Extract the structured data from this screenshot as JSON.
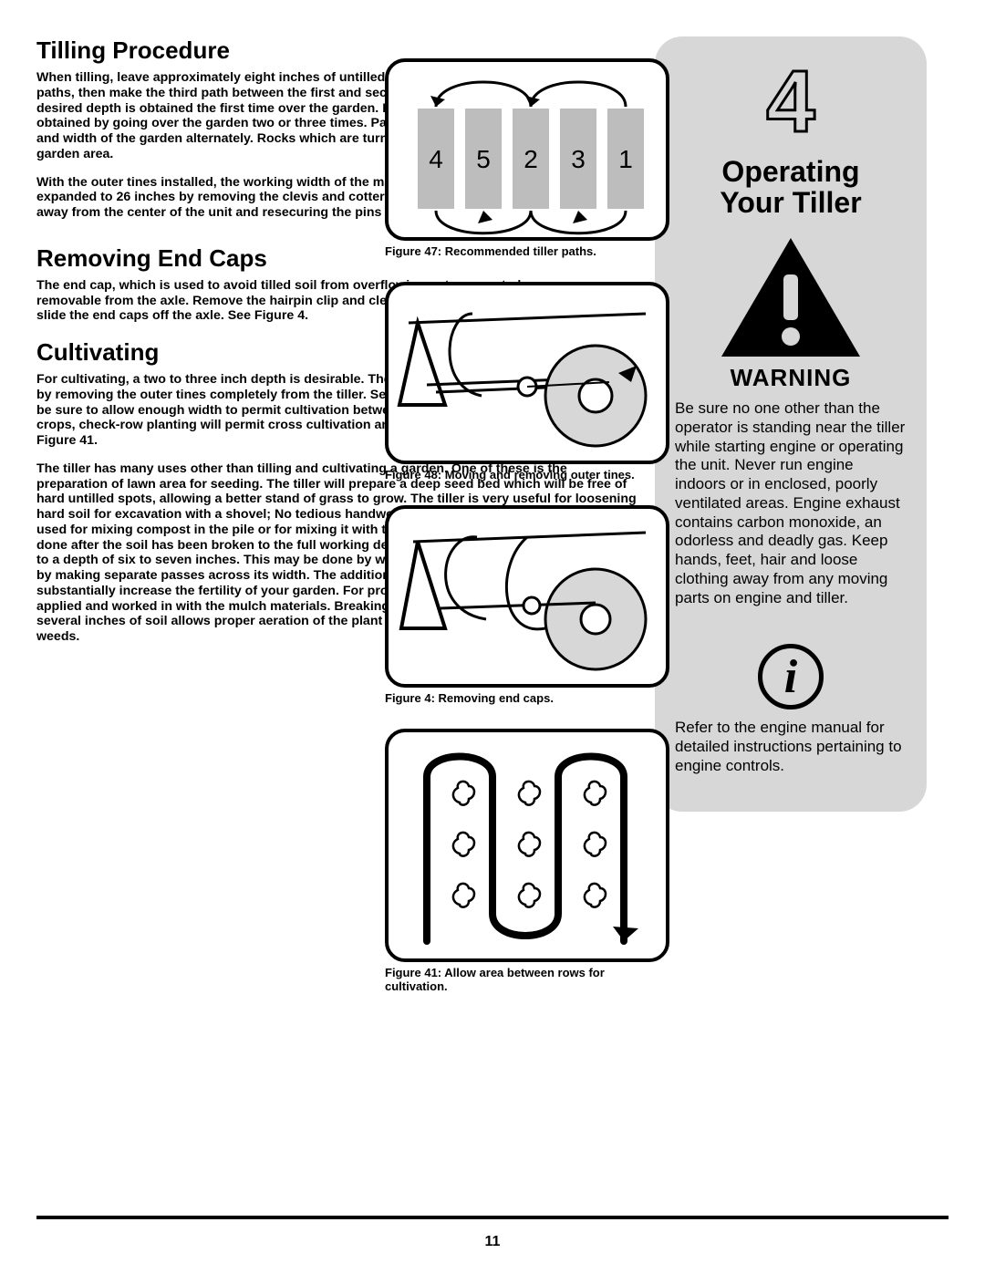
{
  "colors": {
    "page_bg": "#ffffff",
    "text": "#000000",
    "sidebar_bg": "#d7d7d7",
    "fig_fill_gray": "#bdbdbd",
    "rule": "#000000"
  },
  "page_number": "11",
  "left": {
    "h_tilling": "Tilling Procedure",
    "p_tilling1": "When tilling, leave approximately eight inches of untilled soil between the first and second tilling paths, then make the third path between the first and second, Figure 47. In some soils, the desired depth is obtained the first time over the garden. In other soils, the desired depth is obtained by going over the garden two or three times. Passes should be made across the length and width of the garden alternately. Rocks which are turned up should be removed from the garden area.",
    "p_tilling2": "With the outer tines installed, the working width of the machine is 24 inches. This width may be expanded to 26 inches by removing the clevis and cotter pins, sliding each outer tine outward away from the center of the unit and resecuring the pins in the holes provided. See Figure 48.",
    "h_remove": "Removing End Caps",
    "p_remove": "The end cap, which is used to avoid tilled soil from overflowing onto unwanted areas, are removable from the axle. Remove the hairpin clip and clevis pin that secure each end cap and slide the end caps off the axle. See Figure 4.",
    "h_cult": "Cultivating",
    "p_cult1": "For cultivating, a two to three inch depth is desirable. The tine width can be reduced to 1 inches by removing the outer tines completely from the tiller. See figure 48. When laying out plant rows, be sure to allow enough width to permit cultivation between the rows. In growing corn or similar crops, check-row planting will permit cross cultivation and practically eliminate hand hoeing. Figure 41.",
    "p_cult2": "The tiller has many uses other than tilling and cultivating a garden. One of these is the preparation of lawn area for seeding. The tiller will prepare a deep seed bed which will be free of hard untilled spots, allowing a better stand of grass to grow. The tiller is very useful for loosening hard soil for excavation with a shovel; No tedious handwork will be necessary. Your tiller may be used for mixing compost in the pile or for mixing it with the soil in your garden. This should be done after the soil has been broken to the full working depth. The compost should be worked in to a depth of six to seven inches. This may be done by working the length of the garden and then by making separate passes across its width. The addition of decayed organic matter will substantially increase the fertility of your garden. For proper decaying action, fertilier should be applied and worked in with the mulch materials. Breaking up leaves and straw and mixing it with several inches of soil allows proper aeration of the plant root system and retards the growth of weeds."
  },
  "figures": {
    "f47": {
      "caption": "Figure 47: Recommended tiller paths.",
      "labels": [
        "4",
        "5",
        "2",
        "3",
        "1"
      ],
      "bar_fill": "#bdbdbd",
      "label_fontsize": 28
    },
    "f48": {
      "caption": "Figure 48: Moving and removing outer tines."
    },
    "f4": {
      "caption": "Figure 4: Removing end caps."
    },
    "f41": {
      "caption": "Figure 41: Allow area between rows for cultivation."
    }
  },
  "sidebar": {
    "chapter_number": "4",
    "title_l1": "Operating",
    "title_l2": "Your Tiller",
    "warning_label": "WARNING",
    "warning_text": "Be sure no one other than the operator is standing near the tiller while starting engine or operating the unit. Never run engine indoors or in enclosed, poorly ventilated areas. Engine exhaust contains carbon monoxide, an odorless and deadly gas. Keep hands, feet, hair and loose clothing away from any moving parts on engine and tiller.",
    "info_glyph": "i",
    "info_text": "Refer to the engine manual for detailed instructions pertaining to engine controls."
  }
}
